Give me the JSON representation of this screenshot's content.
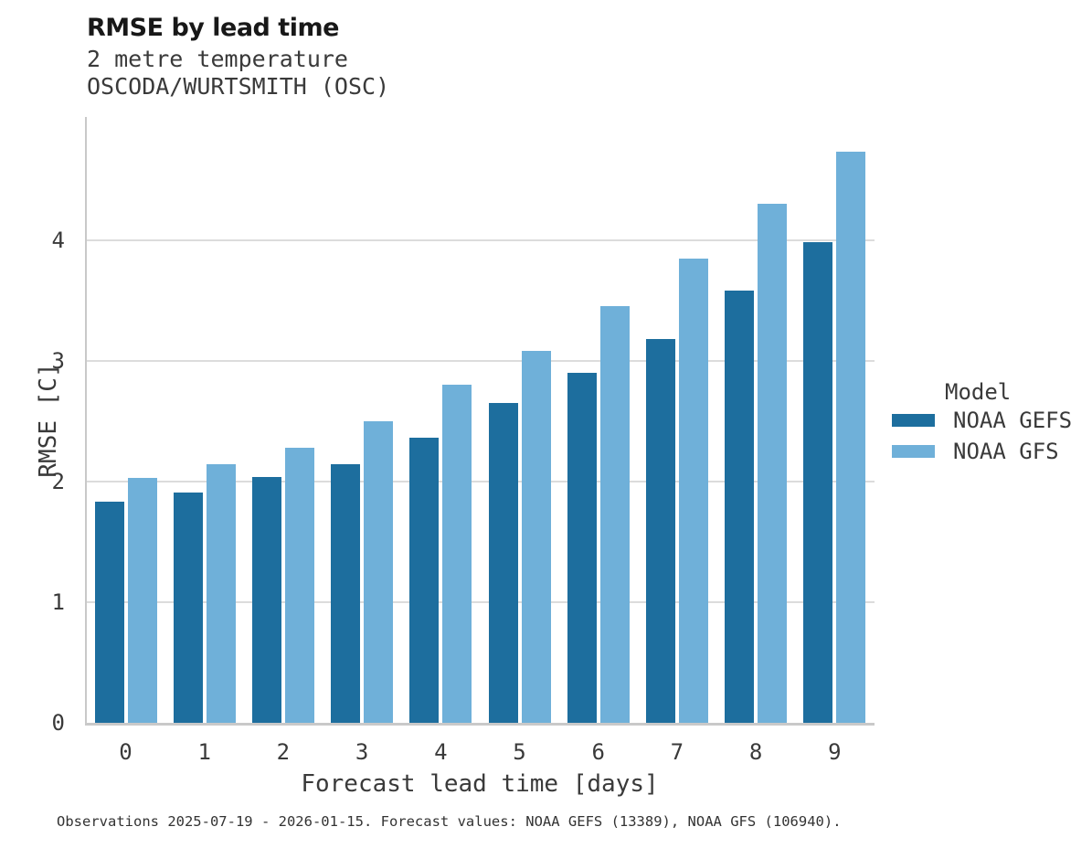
{
  "header": {
    "title": "RMSE by lead time",
    "subtitle_line1": "2 metre temperature",
    "subtitle_line2": "OSCODA/WURTSMITH (OSC)"
  },
  "axes": {
    "xlabel": "Forecast lead time [days]",
    "ylabel": "RMSE [C]"
  },
  "legend": {
    "title": "Model",
    "items": [
      {
        "label": "NOAA GEFS",
        "color": "#1d6e9e"
      },
      {
        "label": "NOAA GFS",
        "color": "#6fb0d9"
      }
    ]
  },
  "footer": {
    "caption": "Observations 2025-07-19 - 2026-01-15. Forecast values: NOAA GEFS (13389), NOAA GFS (106940)."
  },
  "colors": {
    "gefs_bar": "#1d6e9e",
    "gfs_bar": "#6fb0d9",
    "gridline": "#dcdcdc",
    "axis_spine": "#c9c9c9",
    "text": "#3a3a3a"
  },
  "chart_data": {
    "type": "bar",
    "title": "RMSE by lead time",
    "subtitle": "2 metre temperature / OSCODA/WURTSMITH (OSC)",
    "categories": [
      "0",
      "1",
      "2",
      "3",
      "4",
      "5",
      "6",
      "7",
      "8",
      "9"
    ],
    "series": [
      {
        "name": "NOAA GEFS",
        "color": "#1d6e9e",
        "values": [
          1.83,
          1.91,
          2.04,
          2.14,
          2.36,
          2.65,
          2.9,
          3.18,
          3.58,
          3.98
        ]
      },
      {
        "name": "NOAA GFS",
        "color": "#6fb0d9",
        "values": [
          2.03,
          2.14,
          2.28,
          2.5,
          2.8,
          3.08,
          3.45,
          3.85,
          4.3,
          4.73
        ]
      }
    ],
    "xlabel": "Forecast lead time [days]",
    "ylabel": "RMSE [C]",
    "ylim": [
      0,
      5.02
    ],
    "yticks": [
      0,
      1,
      2,
      3,
      4
    ],
    "grid": true,
    "legend_title": "Model",
    "legend_position": "right"
  }
}
